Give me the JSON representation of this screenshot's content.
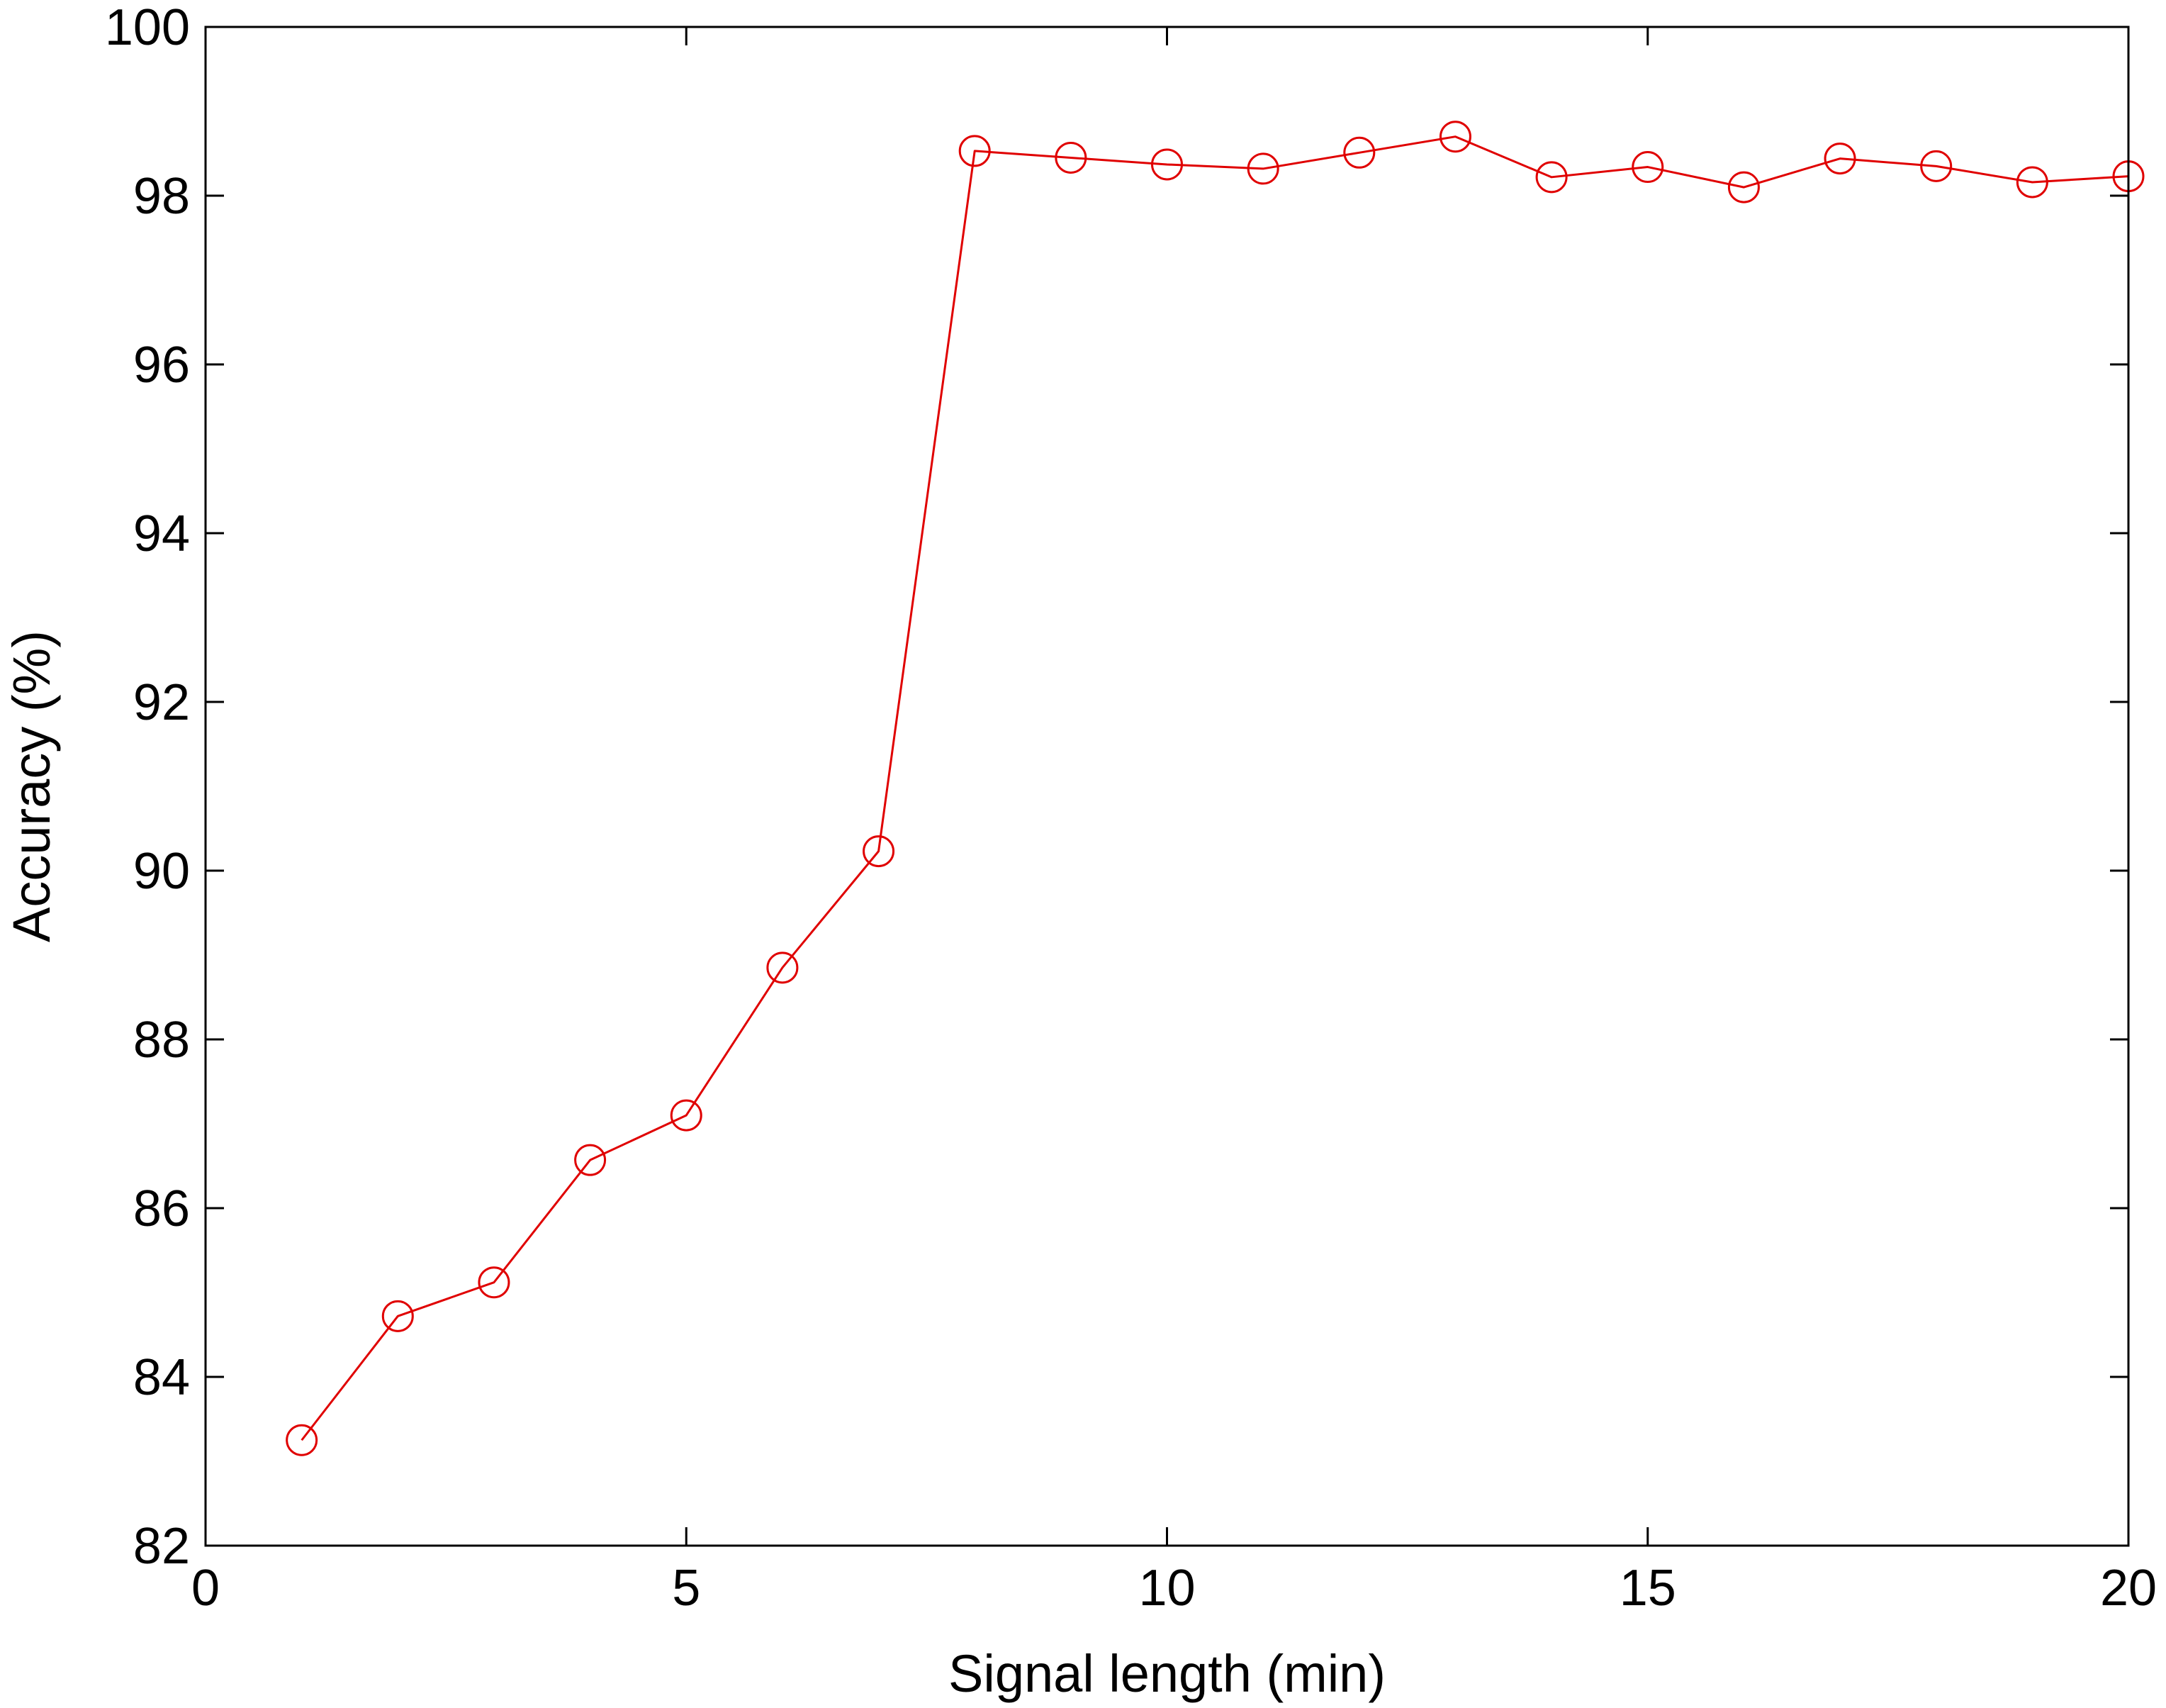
{
  "chart_data": {
    "type": "line",
    "title": "",
    "xlabel": "Signal length (min)",
    "ylabel": "Accuracy (%)",
    "xlim": [
      0,
      20
    ],
    "ylim": [
      82,
      100
    ],
    "xticks": [
      0,
      5,
      10,
      15,
      20
    ],
    "yticks": [
      82,
      84,
      86,
      88,
      90,
      92,
      94,
      96,
      98,
      100
    ],
    "grid": false,
    "legend": "none",
    "series": [
      {
        "color": "#e00000",
        "marker": "open-circle",
        "x": [
          1,
          2,
          3,
          4,
          5,
          6,
          7,
          8,
          9,
          10,
          11,
          12,
          13,
          14,
          15,
          16,
          17,
          18,
          19,
          20
        ],
        "y": [
          83.25,
          84.72,
          85.12,
          86.57,
          87.1,
          88.85,
          90.23,
          98.53,
          98.45,
          98.37,
          98.32,
          98.51,
          98.7,
          98.22,
          98.34,
          98.1,
          98.44,
          98.35,
          98.16,
          98.23
        ]
      }
    ]
  }
}
